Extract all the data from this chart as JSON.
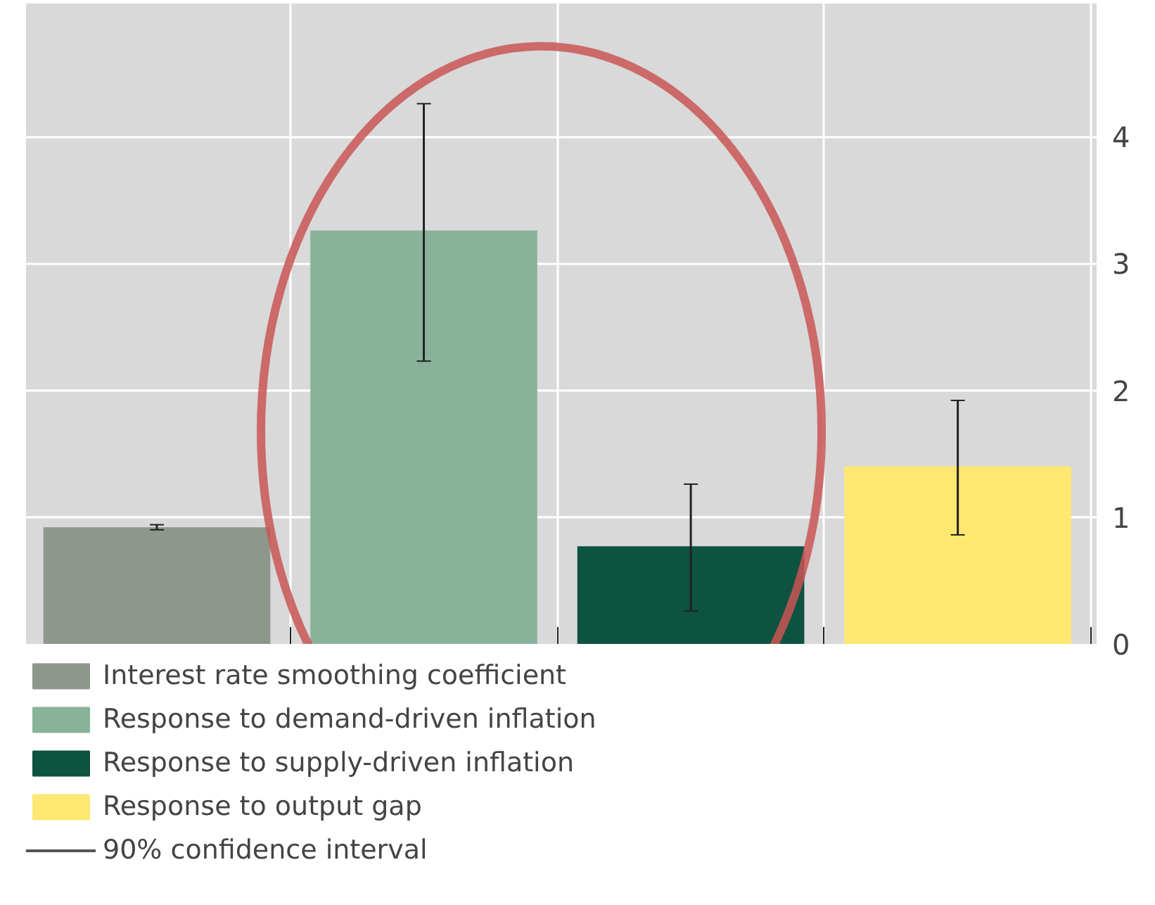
{
  "chart_data": {
    "type": "bar",
    "categories": [
      null,
      null,
      null,
      null
    ],
    "series": [
      {
        "name": "Interest rate smoothing coefficient",
        "color": "#8e978b",
        "values": [
          0.92,
          null,
          null,
          null
        ],
        "errors": [
          0.02,
          null,
          null,
          null
        ]
      },
      {
        "name": "Response to demand-driven inflation",
        "color": "#8ab29a",
        "values": [
          null,
          3.26,
          null,
          null
        ],
        "errors": [
          null,
          [
            2.23,
            4.26
          ],
          null,
          null
        ]
      },
      {
        "name": "Response to supply-driven inflation",
        "color": "#0e5240",
        "values": [
          null,
          null,
          0.77,
          null
        ],
        "errors": [
          null,
          null,
          [
            0.26,
            1.26
          ],
          null
        ]
      },
      {
        "name": "Response to output gap",
        "color": "#fee872",
        "values": [
          null,
          null,
          null,
          1.4
        ],
        "errors": [
          null,
          null,
          null,
          [
            0.86,
            1.92
          ]
        ]
      }
    ],
    "annotations": [
      "90% confidence interval"
    ],
    "ylim": [
      0,
      5.05
    ],
    "yticks": [
      0,
      1,
      2,
      3,
      4
    ],
    "grid": true,
    "legend": "bottom"
  }
}
